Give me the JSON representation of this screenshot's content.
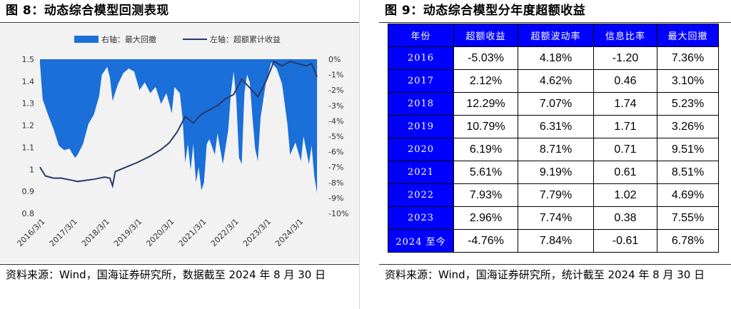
{
  "left": {
    "title": "图 8：动态综合模型回测表现",
    "source": "资料来源：Wind，国海证券研究所，数据截至 2024 年 8 月 30 日"
  },
  "right": {
    "title": "图 9：动态综合模型分年度超额收益",
    "source": "资料来源：Wind，国海证券研究所，统计截至 2024 年 8 月 30 日",
    "table": {
      "headers": [
        "年份",
        "超额收益",
        "超额波动率",
        "信息比率",
        "最大回撤"
      ],
      "rows": [
        [
          "2016",
          "-5.03%",
          "4.18%",
          "-1.20",
          "7.36%"
        ],
        [
          "2017",
          "2.12%",
          "4.62%",
          "0.46",
          "3.10%"
        ],
        [
          "2018",
          "12.29%",
          "7.07%",
          "1.74",
          "5.23%"
        ],
        [
          "2019",
          "10.79%",
          "6.31%",
          "1.71",
          "3.26%"
        ],
        [
          "2020",
          "6.19%",
          "8.71%",
          "0.71",
          "9.51%"
        ],
        [
          "2021",
          "5.61%",
          "9.19%",
          "0.61",
          "8.51%"
        ],
        [
          "2022",
          "7.93%",
          "7.79%",
          "1.02",
          "4.69%"
        ],
        [
          "2023",
          "2.96%",
          "7.74%",
          "0.38",
          "7.55%"
        ],
        [
          "2024 至今",
          "-4.76%",
          "7.84%",
          "-0.61",
          "6.78%"
        ]
      ]
    }
  },
  "chart_data": {
    "type": "line+area",
    "legend": [
      "右轴：最大回撤",
      "左轴：超额累计收益"
    ],
    "legend_position": "top",
    "colors": {
      "drawdown": "#1a6fd8",
      "excess": "#2b3a6b",
      "background": "#f2f2f2"
    },
    "left_axis": {
      "min": 0.8,
      "max": 1.5,
      "ticks": [
        "1.5",
        "1.4",
        "1.3",
        "1.2",
        "1.1",
        "1",
        "0.9",
        "0.8"
      ]
    },
    "right_axis": {
      "min": -10,
      "max": 0,
      "ticks": [
        "0%",
        "-1%",
        "-2%",
        "-3%",
        "-4%",
        "-5%",
        "-6%",
        "-7%",
        "-8%",
        "-9%",
        "-10%"
      ]
    },
    "x_ticks": [
      "2016/3/1",
      "2017/3/1",
      "2018/3/1",
      "2019/3/1",
      "2020/3/1",
      "2021/3/1",
      "2022/3/1",
      "2023/3/1",
      "2024/3/1"
    ],
    "series": [
      {
        "name": "左轴：超额累计收益",
        "axis": "left",
        "points": [
          [
            "2016-01",
            1.01
          ],
          [
            "2016-03",
            0.97
          ],
          [
            "2016-06",
            0.96
          ],
          [
            "2016-09",
            0.96
          ],
          [
            "2017-01",
            0.95
          ],
          [
            "2017-03",
            0.945
          ],
          [
            "2017-06",
            0.95
          ],
          [
            "2017-09",
            0.955
          ],
          [
            "2018-01",
            0.965
          ],
          [
            "2018-03",
            0.96
          ],
          [
            "2018-04",
            0.925
          ],
          [
            "2018-05",
            0.99
          ],
          [
            "2018-09",
            1.01
          ],
          [
            "2019-01",
            1.03
          ],
          [
            "2019-06",
            1.06
          ],
          [
            "2019-10",
            1.09
          ],
          [
            "2020-01",
            1.12
          ],
          [
            "2020-04",
            1.17
          ],
          [
            "2020-07",
            1.24
          ],
          [
            "2020-10",
            1.21
          ],
          [
            "2021-01",
            1.25
          ],
          [
            "2021-04",
            1.27
          ],
          [
            "2021-07",
            1.29
          ],
          [
            "2021-10",
            1.32
          ],
          [
            "2022-01",
            1.34
          ],
          [
            "2022-04",
            1.41
          ],
          [
            "2022-07",
            1.37
          ],
          [
            "2022-10",
            1.33
          ],
          [
            "2023-01",
            1.4
          ],
          [
            "2023-04",
            1.49
          ],
          [
            "2023-07",
            1.47
          ],
          [
            "2023-10",
            1.49
          ],
          [
            "2024-01",
            1.48
          ],
          [
            "2024-04",
            1.47
          ],
          [
            "2024-06",
            1.48
          ],
          [
            "2024-08",
            1.42
          ]
        ]
      },
      {
        "name": "右轴：最大回撤",
        "axis": "right",
        "type": "area",
        "points": [
          [
            "2016-01",
            -0.3
          ],
          [
            "2016-02",
            -2.6
          ],
          [
            "2016-04",
            -3.6
          ],
          [
            "2016-06",
            -4.5
          ],
          [
            "2016-08",
            -5.6
          ],
          [
            "2016-10",
            -5.9
          ],
          [
            "2016-12",
            -5.8
          ],
          [
            "2017-02",
            -6.4
          ],
          [
            "2017-03",
            -6.2
          ],
          [
            "2017-05",
            -5.5
          ],
          [
            "2017-07",
            -4.2
          ],
          [
            "2017-09",
            -3.6
          ],
          [
            "2017-11",
            -2.4
          ],
          [
            "2017-12",
            -1.0
          ],
          [
            "2018-02",
            -0.5
          ],
          [
            "2018-03",
            -1.2
          ],
          [
            "2018-04",
            -2.7
          ],
          [
            "2018-06",
            -1.6
          ],
          [
            "2018-08",
            -0.9
          ],
          [
            "2018-10",
            -0.6
          ],
          [
            "2018-12",
            -0.8
          ],
          [
            "2019-02",
            -2.0
          ],
          [
            "2019-04",
            -1.5
          ],
          [
            "2019-06",
            -2.2
          ],
          [
            "2019-08",
            -1.8
          ],
          [
            "2019-10",
            -2.9
          ],
          [
            "2019-12",
            -2.2
          ],
          [
            "2020-02",
            -3.5
          ],
          [
            "2020-03",
            -1.8
          ],
          [
            "2020-05",
            -2.2
          ],
          [
            "2020-06",
            -3.8
          ],
          [
            "2020-07",
            -6.7
          ],
          [
            "2020-08",
            -5.5
          ],
          [
            "2020-09",
            -7.2
          ],
          [
            "2020-10",
            -5.5
          ],
          [
            "2020-11",
            -8.0
          ],
          [
            "2020-12",
            -7.0
          ],
          [
            "2021-01",
            -8.5
          ],
          [
            "2021-02",
            -8.0
          ],
          [
            "2021-03",
            -5.5
          ],
          [
            "2021-04",
            -5.2
          ],
          [
            "2021-06",
            -6.2
          ],
          [
            "2021-07",
            -4.8
          ],
          [
            "2021-09",
            -6.8
          ],
          [
            "2021-11",
            -4.6
          ],
          [
            "2021-12",
            -2.2
          ],
          [
            "2022-01",
            -0.8
          ],
          [
            "2022-02",
            -2.6
          ],
          [
            "2022-03",
            -6.4
          ],
          [
            "2022-04",
            -6.8
          ],
          [
            "2022-05",
            -2.2
          ],
          [
            "2022-06",
            -1.0
          ],
          [
            "2022-07",
            -1.5
          ],
          [
            "2022-08",
            -3.8
          ],
          [
            "2022-09",
            -5.8
          ],
          [
            "2022-10",
            -6.6
          ],
          [
            "2022-11",
            -3.8
          ],
          [
            "2023-01",
            -1.5
          ],
          [
            "2023-03",
            -0.2
          ],
          [
            "2023-05",
            -0.6
          ],
          [
            "2023-07",
            -1.6
          ],
          [
            "2023-09",
            -4.2
          ],
          [
            "2023-10",
            -6.2
          ],
          [
            "2023-12",
            -5.4
          ],
          [
            "2024-02",
            -6.6
          ],
          [
            "2024-03",
            -5.0
          ],
          [
            "2024-05",
            -6.8
          ],
          [
            "2024-06",
            -5.6
          ],
          [
            "2024-07",
            -7.6
          ],
          [
            "2024-08",
            -8.7
          ]
        ]
      }
    ]
  }
}
